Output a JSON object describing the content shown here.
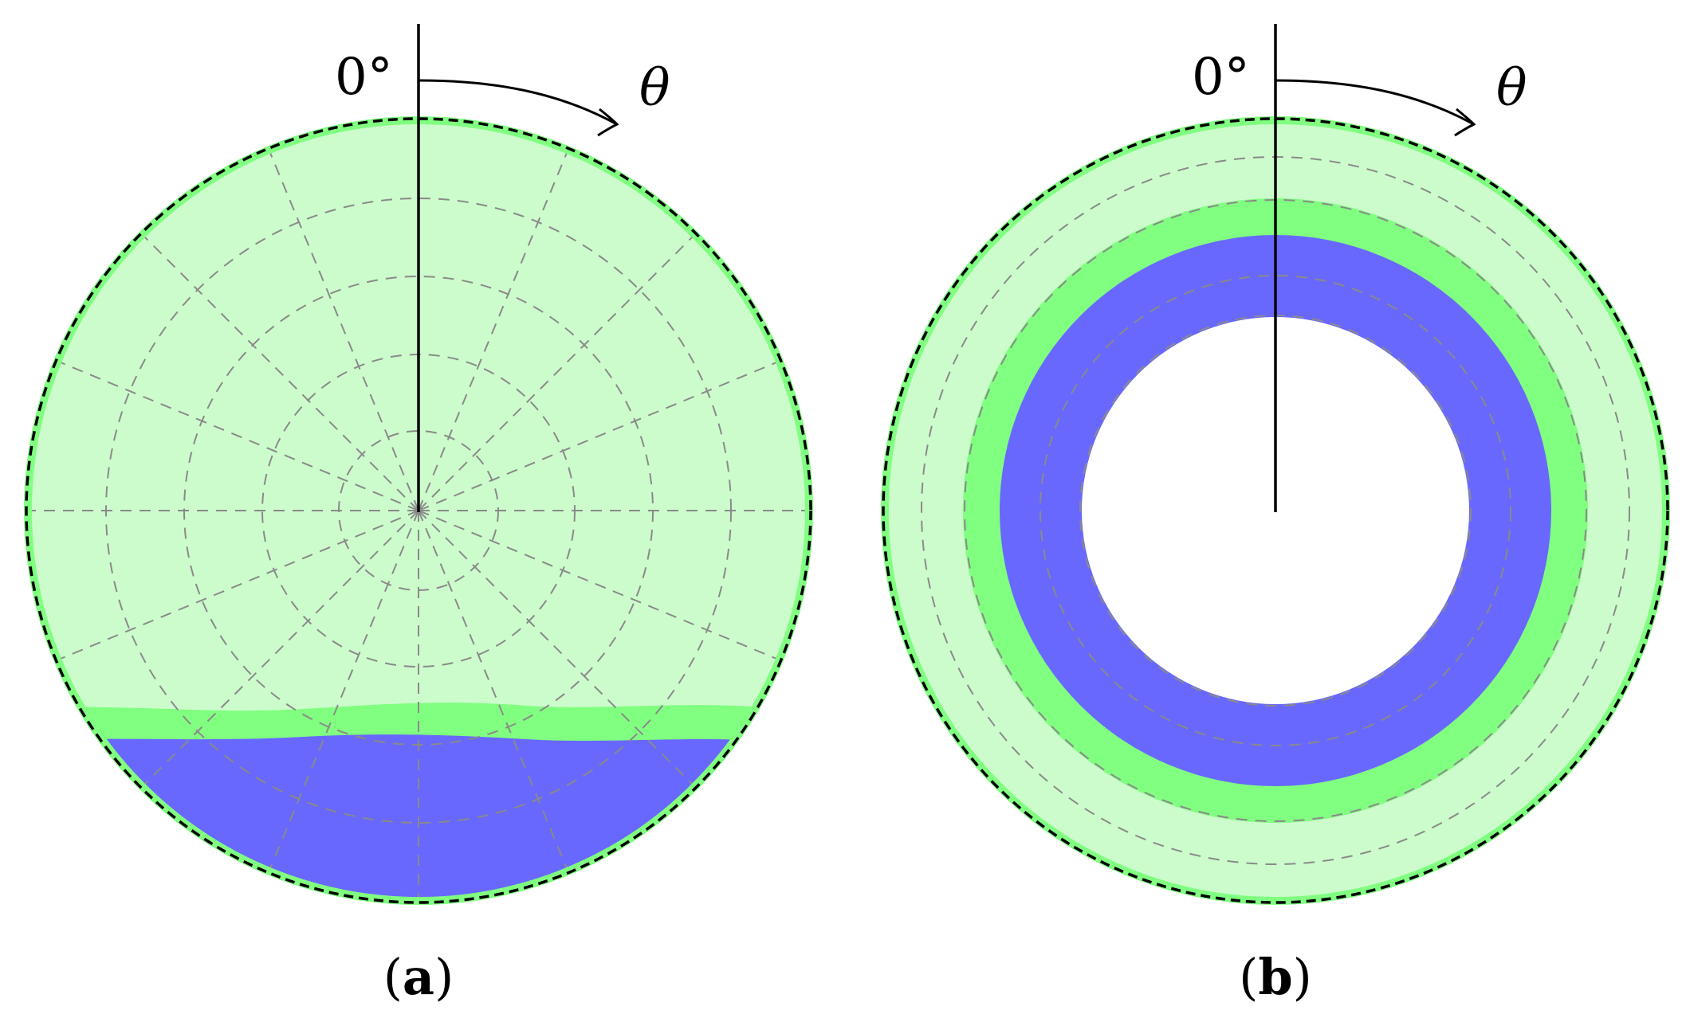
{
  "colors": {
    "light_green": "#ccfccc",
    "green": "#80ff80",
    "blue": "#6868ff",
    "black": "#000000",
    "grid_gray": "#8a8a8a",
    "white": "#ffffff"
  },
  "panels": [
    {
      "id": "a",
      "angle_label": "0°",
      "direction_label": "θ",
      "caption": {
        "open": "(",
        "letter": "a",
        "close": ")"
      }
    },
    {
      "id": "b",
      "angle_label": "0°",
      "direction_label": "θ",
      "caption": {
        "open": "(",
        "letter": "b",
        "close": ")"
      }
    }
  ]
}
